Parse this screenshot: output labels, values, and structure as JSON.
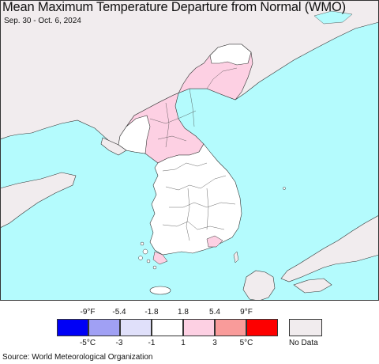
{
  "header": {
    "title": "Mean Maximum Temperature Departure from Normal (WMO)",
    "date_range": "Sep. 30 - Oct. 6, 2024"
  },
  "colors": {
    "ocean": "#b4fbfd",
    "no_data_land": "#f1ecee",
    "neutral": "#ffffff",
    "warm_1": "#fdd0e3",
    "warm_2": "#f99b9a",
    "border": "#333333"
  },
  "legend": {
    "fahrenheit_ticks": [
      "-9°F",
      "-5.4",
      "-1.8",
      "1.8",
      "5.4",
      "9°F"
    ],
    "celsius_ticks": [
      "-5°C",
      "-3",
      "-1",
      "1",
      "3",
      "5°C"
    ],
    "bins": [
      {
        "color": "#0000f6"
      },
      {
        "color": "#a0a0f4"
      },
      {
        "color": "#e0e0fa"
      },
      {
        "color": "#ffffff"
      },
      {
        "color": "#fdd0e3"
      },
      {
        "color": "#f99b9a"
      },
      {
        "color": "#fd0000"
      }
    ],
    "no_data_label": "No Data",
    "no_data_color": "#f1ecee"
  },
  "footer": {
    "source": "Source: World Meteorological Organization"
  }
}
